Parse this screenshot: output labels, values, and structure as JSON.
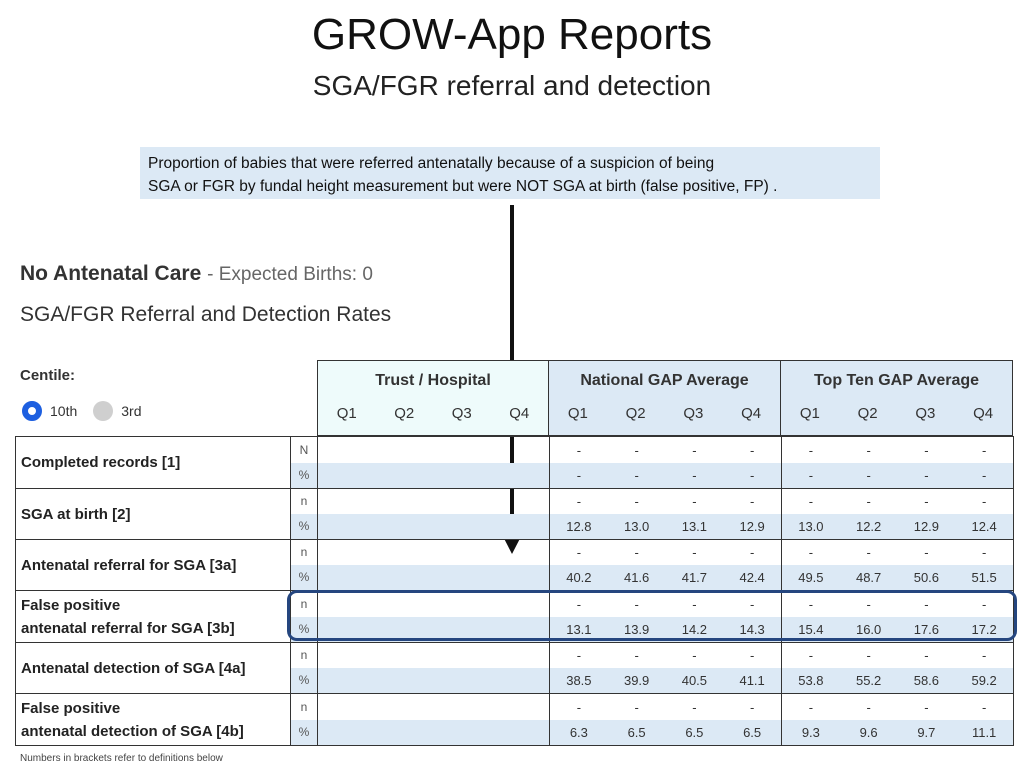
{
  "title": "GROW-App Reports",
  "subtitle": "SGA/FGR referral and detection",
  "callout": {
    "line1": "Proportion of babies that were referred antenatally because of a suspicion of being",
    "line2": "SGA or FGR by fundal height measurement but were NOT SGA at birth (false positive, FP) ."
  },
  "unit": {
    "name": "No Antenatal Care",
    "expected": "- Expected Births: 0"
  },
  "section_title": "SGA/FGR Referral and Detection Rates",
  "centile": {
    "label": "Centile:",
    "options": [
      {
        "label": "10th",
        "selected": true
      },
      {
        "label": "3rd",
        "selected": false
      }
    ]
  },
  "columns": {
    "quarters": [
      "Q1",
      "Q2",
      "Q3",
      "Q4"
    ],
    "groups": [
      "Trust / Hospital",
      "National GAP Average",
      "Top Ten GAP Average"
    ]
  },
  "rows": [
    {
      "label1": "Completed records [1]",
      "label2": "",
      "n_label": "N",
      "national": {
        "n": [
          "-",
          "-",
          "-",
          "-"
        ],
        "pct": [
          "-",
          "-",
          "-",
          "-"
        ]
      },
      "top_ten": {
        "n": [
          "-",
          "-",
          "-",
          "-"
        ],
        "pct": [
          "-",
          "-",
          "-",
          "-"
        ]
      }
    },
    {
      "label1": "SGA at birth [2]",
      "label2": "",
      "n_label": "n",
      "national": {
        "n": [
          "-",
          "-",
          "-",
          "-"
        ],
        "pct": [
          "12.8",
          "13.0",
          "13.1",
          "12.9"
        ]
      },
      "top_ten": {
        "n": [
          "-",
          "-",
          "-",
          "-"
        ],
        "pct": [
          "13.0",
          "12.2",
          "12.9",
          "12.4"
        ]
      }
    },
    {
      "label1": "Antenatal referral for SGA [3a]",
      "label2": "",
      "n_label": "n",
      "national": {
        "n": [
          "-",
          "-",
          "-",
          "-"
        ],
        "pct": [
          "40.2",
          "41.6",
          "41.7",
          "42.4"
        ]
      },
      "top_ten": {
        "n": [
          "-",
          "-",
          "-",
          "-"
        ],
        "pct": [
          "49.5",
          "48.7",
          "50.6",
          "51.5"
        ]
      }
    },
    {
      "label1": "False positive",
      "label2": "antenatal referral for SGA [3b]",
      "n_label": "n",
      "national": {
        "n": [
          "-",
          "-",
          "-",
          "-"
        ],
        "pct": [
          "13.1",
          "13.9",
          "14.2",
          "14.3"
        ]
      },
      "top_ten": {
        "n": [
          "-",
          "-",
          "-",
          "-"
        ],
        "pct": [
          "15.4",
          "16.0",
          "17.6",
          "17.2"
        ]
      }
    },
    {
      "label1": "Antenatal detection of SGA [4a]",
      "label2": "",
      "n_label": "n",
      "national": {
        "n": [
          "-",
          "-",
          "-",
          "-"
        ],
        "pct": [
          "38.5",
          "39.9",
          "40.5",
          "41.1"
        ]
      },
      "top_ten": {
        "n": [
          "-",
          "-",
          "-",
          "-"
        ],
        "pct": [
          "53.8",
          "55.2",
          "58.6",
          "59.2"
        ]
      }
    },
    {
      "label1": "False positive",
      "label2": "antenatal detection of SGA [4b]",
      "n_label": "n",
      "national": {
        "n": [
          "-",
          "-",
          "-",
          "-"
        ],
        "pct": [
          "6.3",
          "6.5",
          "6.5",
          "6.5"
        ]
      },
      "top_ten": {
        "n": [
          "-",
          "-",
          "-",
          "-"
        ],
        "pct": [
          "9.3",
          "9.6",
          "9.7",
          "11.1"
        ]
      }
    }
  ],
  "pct_label": "%",
  "footnote": "Numbers in brackets refer to definitions below",
  "colors": {
    "accent_blue": "#1d5fe0",
    "row_shade": "#dce9f5",
    "trust_header": "#eefbfb",
    "group_header": "#dce9f5",
    "highlight": "#25467f"
  }
}
